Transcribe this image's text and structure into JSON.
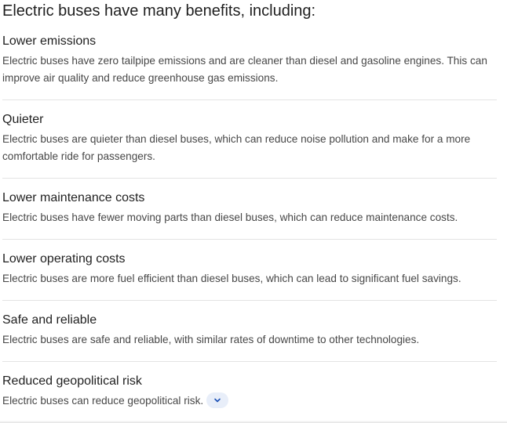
{
  "heading": "Electric buses have many benefits, including:",
  "benefits": [
    {
      "title": "Lower emissions",
      "description": "Electric buses have zero tailpipe emissions and are cleaner than diesel and gasoline engines. This can improve air quality and reduce greenhouse gas emissions."
    },
    {
      "title": "Quieter",
      "description": "Electric buses are quieter than diesel buses, which can reduce noise pollution and make for a more comfortable ride for passengers."
    },
    {
      "title": "Lower maintenance costs",
      "description": "Electric buses have fewer moving parts than diesel buses, which can reduce maintenance costs."
    },
    {
      "title": "Lower operating costs",
      "description": "Electric buses are more fuel efficient than diesel buses, which can lead to significant fuel savings."
    },
    {
      "title": "Safe and reliable",
      "description": "Electric buses are safe and reliable, with similar rates of downtime to other technologies."
    },
    {
      "title": "Reduced geopolitical risk",
      "description": "Electric buses can reduce geopolitical risk."
    }
  ],
  "expand_icon": "chevron-down-icon",
  "colors": {
    "title_text": "#1f1f1f",
    "body_text": "#474747",
    "divider": "#e3e3e3",
    "expand_button_bg": "#e8eef9",
    "expand_icon": "#1a4fb5"
  }
}
